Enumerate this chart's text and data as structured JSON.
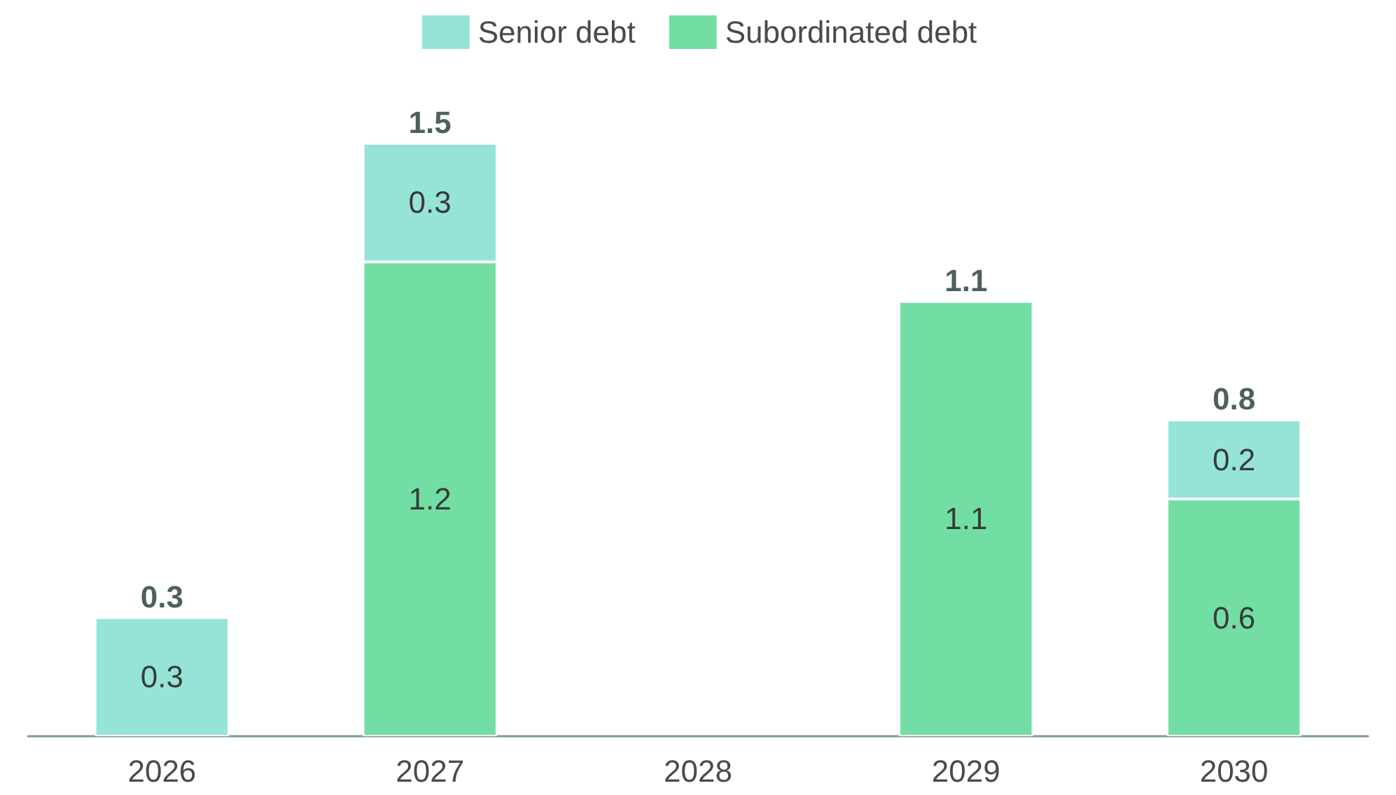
{
  "chart_data": {
    "type": "bar",
    "stacked": true,
    "categories": [
      "2026",
      "2027",
      "2028",
      "2029",
      "2030"
    ],
    "series": [
      {
        "name": "Subordinated debt",
        "color": "#72dea4",
        "values": [
          null,
          1.2,
          null,
          1.1,
          0.6
        ]
      },
      {
        "name": "Senior debt",
        "color": "#96e4d8",
        "values": [
          0.3,
          0.3,
          null,
          null,
          0.2
        ]
      }
    ],
    "totals": [
      "0.3",
      "1.5",
      null,
      "1.1",
      "0.8"
    ],
    "data_labels": true,
    "legend": "top",
    "grid": false
  }
}
